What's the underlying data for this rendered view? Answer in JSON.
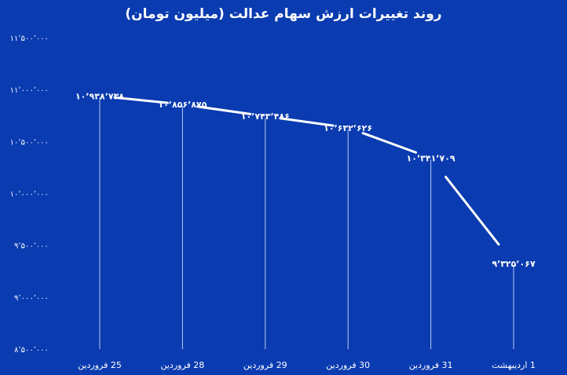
{
  "chart_data": {
    "type": "line",
    "title": "روند تغییرات ارزش سهام عدالت (میلیون تومان)",
    "categories": [
      "25 فروردین",
      "28 فروردین",
      "29 فروردین",
      "30 فروردین",
      "31 فروردین",
      "1 اردیبهشت"
    ],
    "values": [
      10938738,
      10856875,
      10743486,
      10632626,
      10341709,
      9325067
    ],
    "data_labels": [
      "۱۰٬۹۳۸٬۷۳۸",
      "۱۰٬۸۵۶٬۸۷۵",
      "۱۰٬۷۴۳٬۴۸۶",
      "۱۰٬۶۳۲٬۶۲۶",
      "۱۰٬۳۴۱٬۷۰۹",
      "۹٬۳۲۵٬۰۶۷"
    ],
    "ylim": [
      8500000,
      11500000
    ],
    "yticks": [
      8500000,
      9000000,
      9500000,
      10000000,
      10500000,
      11000000,
      11500000
    ],
    "ytick_labels": [
      "۸٬۵۰۰٬۰۰۰",
      "۹٬۰۰۰٬۰۰۰",
      "۹٬۵۰۰٬۰۰۰",
      "۱۰٬۰۰۰٬۰۰۰",
      "۱۰٬۵۰۰٬۰۰۰",
      "۱۱٬۰۰۰٬۰۰۰",
      "۱۱٬۵۰۰٬۰۰۰"
    ],
    "grid": false,
    "colors": {
      "background": "#0a3bb0",
      "line": "#ffffff",
      "drop_line": "#d9e4ff",
      "text": "#ffffff"
    }
  }
}
